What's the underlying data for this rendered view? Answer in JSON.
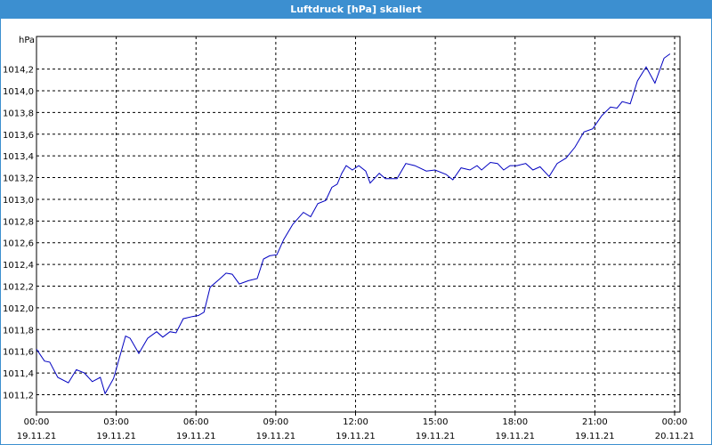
{
  "window_title": "Luftdruck [hPa] skaliert",
  "chart_data": {
    "type": "line",
    "y_label": "hPa",
    "color": "#0000c0",
    "grid": true,
    "xlim": [
      0,
      24
    ],
    "xticks": [
      {
        "value": 0,
        "label": "00:00",
        "date": "19.11.21"
      },
      {
        "value": 3,
        "label": "03:00",
        "date": "19.11.21"
      },
      {
        "value": 6,
        "label": "06:00",
        "date": "19.11.21"
      },
      {
        "value": 9,
        "label": "09:00",
        "date": "19.11.21"
      },
      {
        "value": 12,
        "label": "12:00",
        "date": "19.11.21"
      },
      {
        "value": 15,
        "label": "15:00",
        "date": "19.11.21"
      },
      {
        "value": 18,
        "label": "18:00",
        "date": "19.11.21"
      },
      {
        "value": 21,
        "label": "21:00",
        "date": "19.11.21"
      },
      {
        "value": 24,
        "label": "00:00",
        "date": "20.11.21"
      }
    ],
    "ylim": [
      1011.04,
      1014.5
    ],
    "yticks": [
      {
        "value": 1011.2,
        "label": "1011,2"
      },
      {
        "value": 1011.4,
        "label": "1011,4"
      },
      {
        "value": 1011.6,
        "label": "1011,6"
      },
      {
        "value": 1011.8,
        "label": "1011,8"
      },
      {
        "value": 1012.0,
        "label": "1012,0"
      },
      {
        "value": 1012.2,
        "label": "1012,2"
      },
      {
        "value": 1012.4,
        "label": "1012,4"
      },
      {
        "value": 1012.6,
        "label": "1012,6"
      },
      {
        "value": 1012.8,
        "label": "1012,8"
      },
      {
        "value": 1013.0,
        "label": "1013,0"
      },
      {
        "value": 1013.2,
        "label": "1013,2"
      },
      {
        "value": 1013.4,
        "label": "1013,4"
      },
      {
        "value": 1013.6,
        "label": "1013,6"
      },
      {
        "value": 1013.8,
        "label": "1013,8"
      },
      {
        "value": 1014.0,
        "label": "1014,0"
      },
      {
        "value": 1014.2,
        "label": "1014,2"
      }
    ],
    "x": [
      0,
      0.3,
      0.5,
      0.8,
      1.2,
      1.5,
      1.8,
      2.1,
      2.4,
      2.58,
      2.9,
      3.35,
      3.52,
      3.85,
      4.18,
      4.52,
      4.75,
      5.02,
      5.25,
      5.52,
      5.86,
      6.09,
      6.3,
      6.53,
      6.86,
      7.13,
      7.36,
      7.63,
      7.97,
      8.3,
      8.54,
      8.77,
      9.04,
      9.3,
      9.64,
      10.04,
      10.31,
      10.58,
      10.88,
      11.11,
      11.31,
      11.48,
      11.65,
      11.88,
      12.12,
      12.38,
      12.55,
      12.89,
      13.12,
      13.56,
      13.89,
      14.23,
      14.66,
      14.99,
      15.4,
      15.66,
      15.97,
      16.3,
      16.57,
      16.74,
      17.07,
      17.34,
      17.57,
      17.81,
      18.07,
      18.4,
      18.67,
      18.94,
      19.28,
      19.58,
      19.92,
      20.25,
      20.59,
      20.92,
      21.26,
      21.59,
      21.83,
      22.03,
      22.33,
      22.6,
      22.93,
      23.26,
      23.6,
      23.83
    ],
    "values": [
      1011.62,
      1011.51,
      1011.5,
      1011.36,
      1011.31,
      1011.43,
      1011.4,
      1011.32,
      1011.36,
      1011.21,
      1011.35,
      1011.74,
      1011.72,
      1011.58,
      1011.72,
      1011.78,
      1011.73,
      1011.78,
      1011.77,
      1011.9,
      1011.92,
      1011.93,
      1011.96,
      1012.19,
      1012.26,
      1012.32,
      1012.31,
      1012.22,
      1012.25,
      1012.27,
      1012.45,
      1012.48,
      1012.49,
      1012.63,
      1012.77,
      1012.88,
      1012.84,
      1012.96,
      1012.99,
      1013.11,
      1013.14,
      1013.24,
      1013.31,
      1013.27,
      1013.31,
      1013.26,
      1013.15,
      1013.24,
      1013.19,
      1013.19,
      1013.33,
      1013.31,
      1013.26,
      1013.27,
      1013.23,
      1013.18,
      1013.29,
      1013.27,
      1013.31,
      1013.27,
      1013.34,
      1013.33,
      1013.27,
      1013.31,
      1013.31,
      1013.33,
      1013.27,
      1013.3,
      1013.21,
      1013.33,
      1013.38,
      1013.48,
      1013.62,
      1013.65,
      1013.77,
      1013.85,
      1013.84,
      1013.9,
      1013.88,
      1014.09,
      1014.22,
      1014.07,
      1014.3,
      1014.34
    ]
  }
}
